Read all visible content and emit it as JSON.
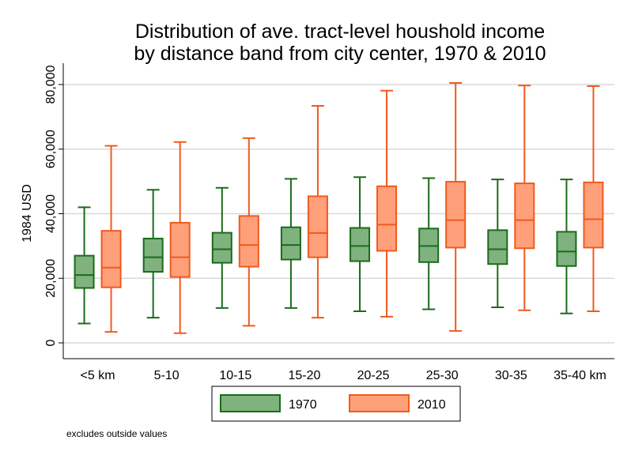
{
  "chart_data": {
    "type": "boxplot",
    "title_lines": [
      "Distribution of ave. tract-level houshold income",
      "by distance band from city center, 1970 & 2010"
    ],
    "ylabel": "1984 USD",
    "ylim": [
      -5000,
      88000
    ],
    "yticks": [
      0,
      20000,
      40000,
      60000,
      80000
    ],
    "ytick_labels": [
      "0",
      "20,000",
      "40,000",
      "60,000",
      "80,000"
    ],
    "grid": true,
    "categories": [
      "<5 km",
      "5-10",
      "10-15",
      "15-20",
      "20-25",
      "25-30",
      "30-35",
      "35-40 km"
    ],
    "series": [
      {
        "name": "1970",
        "fill": "#7fb27f",
        "stroke": "#1a6b1a",
        "boxes": [
          {
            "min": 6000,
            "q1": 17000,
            "median": 21000,
            "q3": 27000,
            "max": 42000
          },
          {
            "min": 7800,
            "q1": 22000,
            "median": 26500,
            "q3": 32300,
            "max": 47400
          },
          {
            "min": 10800,
            "q1": 24800,
            "median": 29000,
            "q3": 34100,
            "max": 48000
          },
          {
            "min": 10800,
            "q1": 25800,
            "median": 30300,
            "q3": 35800,
            "max": 50800
          },
          {
            "min": 9800,
            "q1": 25300,
            "median": 30000,
            "q3": 35600,
            "max": 51300
          },
          {
            "min": 10400,
            "q1": 25000,
            "median": 30000,
            "q3": 35400,
            "max": 51000
          },
          {
            "min": 11000,
            "q1": 24400,
            "median": 29000,
            "q3": 34900,
            "max": 50600
          },
          {
            "min": 9100,
            "q1": 23800,
            "median": 28300,
            "q3": 34400,
            "max": 50600
          }
        ]
      },
      {
        "name": "2010",
        "fill": "#ffa07a",
        "stroke": "#f05a1e",
        "boxes": [
          {
            "min": 3400,
            "q1": 17200,
            "median": 23300,
            "q3": 34700,
            "max": 61000
          },
          {
            "min": 3000,
            "q1": 20400,
            "median": 26500,
            "q3": 37200,
            "max": 62200
          },
          {
            "min": 5300,
            "q1": 23600,
            "median": 30300,
            "q3": 39300,
            "max": 63400
          },
          {
            "min": 7800,
            "q1": 26500,
            "median": 34000,
            "q3": 45400,
            "max": 73400
          },
          {
            "min": 8100,
            "q1": 28500,
            "median": 36600,
            "q3": 48500,
            "max": 78100
          },
          {
            "min": 3700,
            "q1": 29500,
            "median": 38000,
            "q3": 49900,
            "max": 80500
          },
          {
            "min": 10100,
            "q1": 29300,
            "median": 38000,
            "q3": 49400,
            "max": 79700
          },
          {
            "min": 9800,
            "q1": 29500,
            "median": 38300,
            "q3": 49700,
            "max": 79500
          }
        ]
      }
    ],
    "legend": {
      "position": "bottom",
      "entries": [
        "1970",
        "2010"
      ]
    },
    "note": "excludes outside values"
  }
}
